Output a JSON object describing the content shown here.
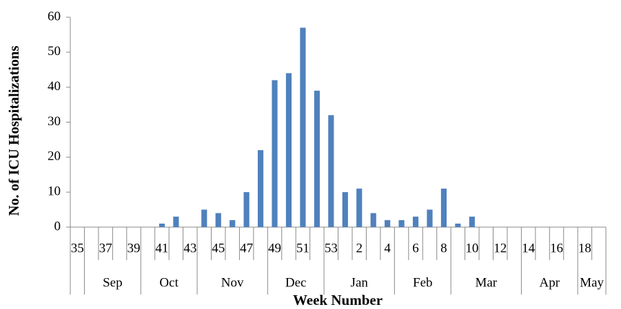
{
  "chart_data": {
    "type": "bar",
    "x_label": "Week Number",
    "y_label": "No. of ICU Hospitalizations",
    "categories": [
      "35",
      null,
      "37",
      null,
      "39",
      null,
      "41",
      null,
      "43",
      null,
      "45",
      null,
      "47",
      null,
      "49",
      null,
      "51",
      null,
      "53",
      null,
      "2",
      null,
      "4",
      null,
      "6",
      null,
      "8",
      null,
      "10",
      null,
      "12",
      null,
      "14",
      null,
      "16",
      null,
      "18",
      null
    ],
    "values": [
      0,
      0,
      0,
      0,
      0,
      0,
      1,
      3,
      0,
      5,
      4,
      2,
      10,
      22,
      42,
      44,
      57,
      39,
      32,
      10,
      11,
      4,
      2,
      2,
      3,
      5,
      11,
      1,
      3,
      0,
      0,
      0,
      0,
      0,
      0,
      0,
      0,
      0
    ],
    "months": [
      "Sep",
      "Oct",
      "Nov",
      "Dec",
      "Jan",
      "Feb",
      "Mar",
      "Apr",
      "May"
    ],
    "color": "#4f81bd",
    "ylim": [
      0,
      60
    ],
    "yticks": [
      0,
      10,
      20,
      30,
      40,
      50,
      60
    ],
    "grid": false
  }
}
